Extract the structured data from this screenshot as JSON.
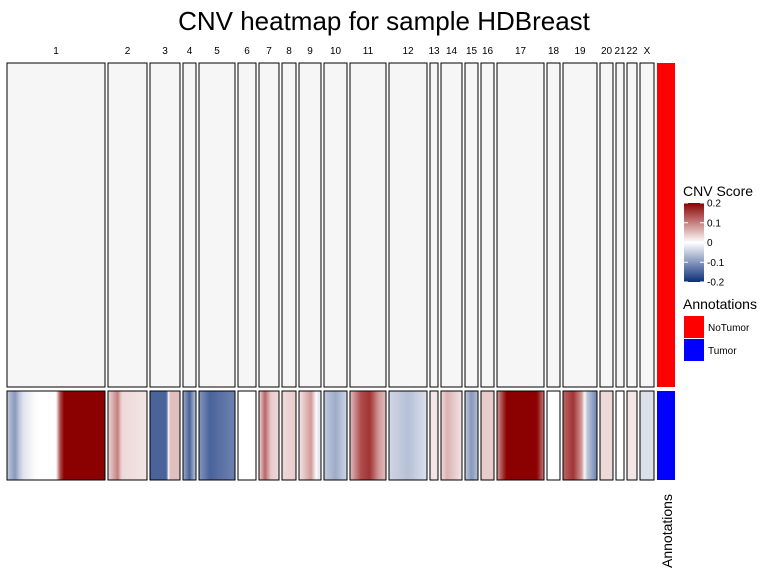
{
  "chart_data": {
    "type": "heatmap",
    "title": "CNV heatmap for sample HDBreast",
    "chromosomes": [
      {
        "name": "1",
        "nt": "flat",
        "tumor": [
          [
            0,
            -0.05
          ],
          [
            0.08,
            -0.1
          ],
          [
            0.15,
            -0.03
          ],
          [
            0.3,
            0.0
          ],
          [
            0.5,
            0.0
          ],
          [
            0.56,
            0.2
          ],
          [
            1,
            0.2
          ]
        ]
      },
      {
        "name": "2",
        "nt": "flat",
        "tumor": [
          [
            0,
            0.03
          ],
          [
            0.25,
            0.1
          ],
          [
            0.35,
            0.03
          ],
          [
            1,
            0.02
          ]
        ]
      },
      {
        "name": "3",
        "nt": "flat",
        "tumor": [
          [
            0,
            -0.15
          ],
          [
            0.55,
            -0.15
          ],
          [
            0.65,
            0.05
          ],
          [
            1,
            0.05
          ]
        ]
      },
      {
        "name": "4",
        "nt": "flat",
        "tumor": [
          [
            0,
            -0.08
          ],
          [
            0.5,
            -0.15
          ],
          [
            1,
            -0.05
          ]
        ]
      },
      {
        "name": "5",
        "nt": "flat",
        "tumor": [
          [
            0,
            -0.1
          ],
          [
            0.3,
            -0.15
          ],
          [
            1,
            -0.12
          ]
        ]
      },
      {
        "name": "6",
        "nt": "flat",
        "tumor": [
          [
            0,
            0.0
          ],
          [
            1,
            0.0
          ]
        ]
      },
      {
        "name": "7",
        "nt": "flat",
        "tumor": [
          [
            0,
            0.03
          ],
          [
            0.3,
            0.12
          ],
          [
            0.6,
            0.04
          ],
          [
            1,
            0.03
          ]
        ]
      },
      {
        "name": "8",
        "nt": "flat",
        "tumor": [
          [
            0,
            0.03
          ],
          [
            1,
            0.04
          ]
        ]
      },
      {
        "name": "9",
        "nt": "flat",
        "tumor": [
          [
            0,
            0.02
          ],
          [
            0.55,
            0.08
          ],
          [
            0.85,
            -0.02
          ],
          [
            1,
            -0.02
          ]
        ]
      },
      {
        "name": "10",
        "nt": "flat",
        "tumor": [
          [
            0,
            -0.05
          ],
          [
            0.5,
            -0.08
          ],
          [
            1,
            -0.04
          ]
        ]
      },
      {
        "name": "11",
        "nt": "flat",
        "tumor": [
          [
            0,
            0.05
          ],
          [
            0.3,
            0.14
          ],
          [
            0.55,
            0.16
          ],
          [
            0.8,
            0.08
          ],
          [
            1,
            0.05
          ]
        ]
      },
      {
        "name": "12",
        "nt": "flat",
        "tumor": [
          [
            0,
            -0.04
          ],
          [
            0.5,
            -0.06
          ],
          [
            1,
            -0.03
          ]
        ]
      },
      {
        "name": "13",
        "nt": "flat",
        "tumor": [
          [
            0,
            0.02
          ],
          [
            1,
            0.02
          ]
        ]
      },
      {
        "name": "14",
        "nt": "flat",
        "tumor": [
          [
            0,
            0.03
          ],
          [
            0.3,
            0.06
          ],
          [
            1,
            0.02
          ]
        ]
      },
      {
        "name": "15",
        "nt": "flat",
        "tumor": [
          [
            0,
            -0.05
          ],
          [
            0.5,
            -0.1
          ],
          [
            1,
            -0.06
          ]
        ]
      },
      {
        "name": "16",
        "nt": "flat",
        "tumor": [
          [
            0,
            0.04
          ],
          [
            1,
            0.04
          ]
        ]
      },
      {
        "name": "17",
        "nt": "flat",
        "tumor": [
          [
            0,
            0.08
          ],
          [
            0.2,
            0.2
          ],
          [
            0.85,
            0.2
          ],
          [
            1,
            0.1
          ]
        ]
      },
      {
        "name": "18",
        "nt": "flat",
        "tumor": [
          [
            0,
            0.0
          ],
          [
            1,
            0.0
          ]
        ]
      },
      {
        "name": "19",
        "nt": "flat",
        "tumor": [
          [
            0,
            0.12
          ],
          [
            0.3,
            0.16
          ],
          [
            0.55,
            0.08
          ],
          [
            0.7,
            -0.05
          ],
          [
            1,
            -0.12
          ]
        ]
      },
      {
        "name": "20",
        "nt": "flat",
        "tumor": [
          [
            0,
            0.03
          ],
          [
            1,
            0.03
          ]
        ]
      },
      {
        "name": "21",
        "nt": "flat",
        "tumor": [
          [
            0,
            0.0
          ],
          [
            1,
            0.0
          ]
        ]
      },
      {
        "name": "22",
        "nt": "flat",
        "tumor": [
          [
            0,
            0.02
          ],
          [
            1,
            0.02
          ]
        ]
      },
      {
        "name": "X",
        "nt": "flat",
        "tumor": [
          [
            0,
            -0.03
          ],
          [
            1,
            -0.03
          ]
        ]
      }
    ],
    "legend": {
      "title": "CNV Score",
      "ticks": [
        "0.2",
        "0.1",
        "0",
        "-0.1",
        "-0.2"
      ],
      "tick_values": [
        0.2,
        0.1,
        0,
        -0.1,
        -0.2
      ],
      "range": [
        -0.2,
        0.2
      ],
      "colors": {
        "low": "#0d2f7a",
        "mid": "#ffffff",
        "high": "#8b0000"
      }
    },
    "annotations": {
      "title": "Annotations",
      "axis_label": "Annotations",
      "groups": [
        {
          "name": "NoTumor",
          "color": "#ff0000"
        },
        {
          "name": "Tumor",
          "color": "#0000ff"
        }
      ]
    }
  }
}
